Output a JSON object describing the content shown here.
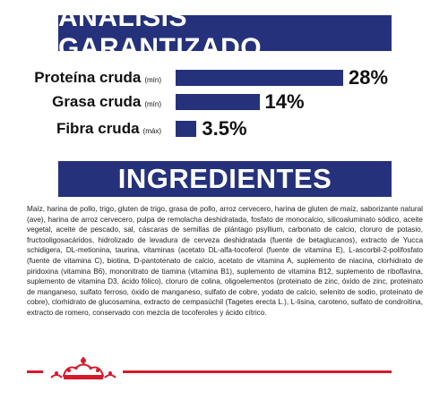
{
  "analysis": {
    "title": "ANÁLISIS GARANTIZADO",
    "rows": [
      {
        "label": "Proteína cruda",
        "qualifier": "(mín)",
        "value": 28,
        "display": "28%"
      },
      {
        "label": "Grasa cruda",
        "qualifier": "(mín)",
        "value": 14,
        "display": "14%"
      },
      {
        "label": "Fibra cruda",
        "qualifier": "(máx)",
        "value": 3.5,
        "display": "3.5%"
      }
    ]
  },
  "ingredients": {
    "title": "INGREDIENTES",
    "text": "Maíz, harina de pollo, trigo, gluten de trigo, grasa de pollo, arroz cervecero, harina de gluten de maíz, saborizante natural (ave), harina de arroz cervecero, pulpa de remolacha deshidratada, fosfato de monocalcio, silicoaluminato sódico, aceite vegetal, aceite de pescado, sal, cáscaras de semillas de plántago psyllium, carbonato de calcio, cloruro de potasio, fructooligosacáridos, hidrolizado de levadura de cerveza deshidratada (fuente de betaglucanos), extracto de Yucca schidigera, DL-metionina, taurina, vitaminas (acetato DL-alfa-tocoferol (fuente de vitamina E), L-ascorbil-2-polifosfato (fuente de vitamina C), biotina, D-pantotenato de calcio, acetato de vitamina A, suplemento de niacina, clorhidrato de piridoxina (vitamina B6), mononitrato de tiamina (vitamina B1), suplemento de vitamina B12, suplemento de riboflavina, suplemento de vitamina D3, ácido fólico), cloruro de colina, oligoelementos (proteinato de zinc, óxido de zinc, proteinato de manganeso, sulfato ferroso, óxido de manganeso, sulfato de cobre, yodato de calcio, selenito de sodio, proteinato de cobre), clorhidrato de glucosamina, extracto de cempasúchil (Tagetes erecta L.), L-lisina, caroteno, sulfato de condroitina, extracto de romero, conservado con mezcla de tocoferoles y ácido cítrico."
  },
  "colors": {
    "brand_blue": "#25327b",
    "accent_red": "#d51a2b"
  },
  "footer": {
    "logo_icon": "crown-icon"
  }
}
